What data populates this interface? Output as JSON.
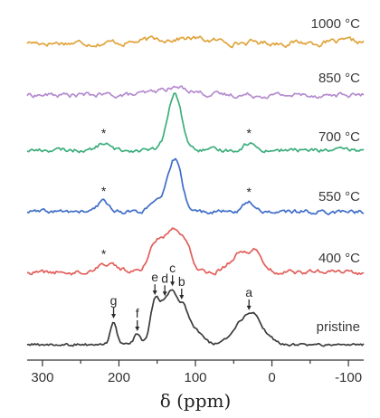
{
  "chart_data": {
    "type": "line",
    "title": "",
    "xlabel": "δ (ppm)",
    "ylabel": "",
    "xlim": [
      320,
      -120
    ],
    "x_reversed": true,
    "xticks": [
      300,
      200,
      100,
      0,
      -100
    ],
    "xtick_labels": [
      "300",
      "200",
      "100",
      "0",
      "-100"
    ],
    "y_axis_shown": false,
    "grid": false,
    "legend": "none; each trace labelled at its right end",
    "series": [
      {
        "name": "1000 °C",
        "color": "#e0a43c",
        "noise": 0.9,
        "peaks": [
          {
            "center": 120,
            "width": 32,
            "height": 5
          }
        ],
        "markers": []
      },
      {
        "name": "850 °C",
        "color": "#b58ccf",
        "noise": 0.8,
        "peaks": [
          {
            "center": 125,
            "width": 22,
            "height": 8
          }
        ],
        "markers": []
      },
      {
        "name": "700 °C",
        "color": "#3dae7d",
        "noise": 0.7,
        "peaks": [
          {
            "center": 127,
            "width": 9,
            "height": 62
          },
          {
            "center": 220,
            "width": 7,
            "height": 8
          },
          {
            "center": 30,
            "width": 7,
            "height": 8
          }
        ],
        "markers": [
          {
            "text": "*",
            "x": 220
          },
          {
            "text": "*",
            "x": 30
          }
        ]
      },
      {
        "name": "550 °C",
        "color": "#3f6ec8",
        "noise": 0.7,
        "peaks": [
          {
            "center": 127,
            "width": 9,
            "height": 58
          },
          {
            "center": 150,
            "width": 9,
            "height": 10
          },
          {
            "center": 220,
            "width": 7,
            "height": 12
          },
          {
            "center": 30,
            "width": 7,
            "height": 11
          }
        ],
        "markers": [
          {
            "text": "*",
            "x": 220
          },
          {
            "text": "*",
            "x": 30
          }
        ]
      },
      {
        "name": "400 °C",
        "color": "#e25f5a",
        "noise": 0.8,
        "peaks": [
          {
            "center": 130,
            "width": 10,
            "height": 44
          },
          {
            "center": 152,
            "width": 9,
            "height": 32
          },
          {
            "center": 113,
            "width": 9,
            "height": 27
          },
          {
            "center": 215,
            "width": 14,
            "height": 10
          },
          {
            "center": 35,
            "width": 17,
            "height": 24
          },
          {
            "center": 18,
            "width": 6,
            "height": 8
          }
        ],
        "markers": [
          {
            "text": "*",
            "x": 220
          }
        ]
      },
      {
        "name": "pristine",
        "color": "#3c3c3c",
        "noise": 0.5,
        "peaks": [
          {
            "center": 207,
            "width": 4,
            "height": 26
          },
          {
            "center": 176,
            "width": 4,
            "height": 12
          },
          {
            "center": 153,
            "width": 6,
            "height": 48
          },
          {
            "center": 140,
            "width": 6,
            "height": 40
          },
          {
            "center": 130,
            "width": 5,
            "height": 38
          },
          {
            "center": 118,
            "width": 8,
            "height": 42
          },
          {
            "center": 100,
            "width": 10,
            "height": 14
          },
          {
            "center": 35,
            "width": 15,
            "height": 28
          },
          {
            "center": 22,
            "width": 8,
            "height": 14
          },
          {
            "center": 5,
            "width": 9,
            "height": 6
          }
        ],
        "markers": [
          {
            "text": "g",
            "x": 207,
            "arrow": true
          },
          {
            "text": "f",
            "x": 176,
            "arrow": true
          },
          {
            "text": "e",
            "x": 153,
            "arrow": true
          },
          {
            "text": "d",
            "x": 140,
            "arrow": true
          },
          {
            "text": "c",
            "x": 130,
            "arrow": true
          },
          {
            "text": "b",
            "x": 118,
            "arrow": true
          },
          {
            "text": "a",
            "x": 30,
            "arrow": true
          }
        ]
      }
    ]
  }
}
